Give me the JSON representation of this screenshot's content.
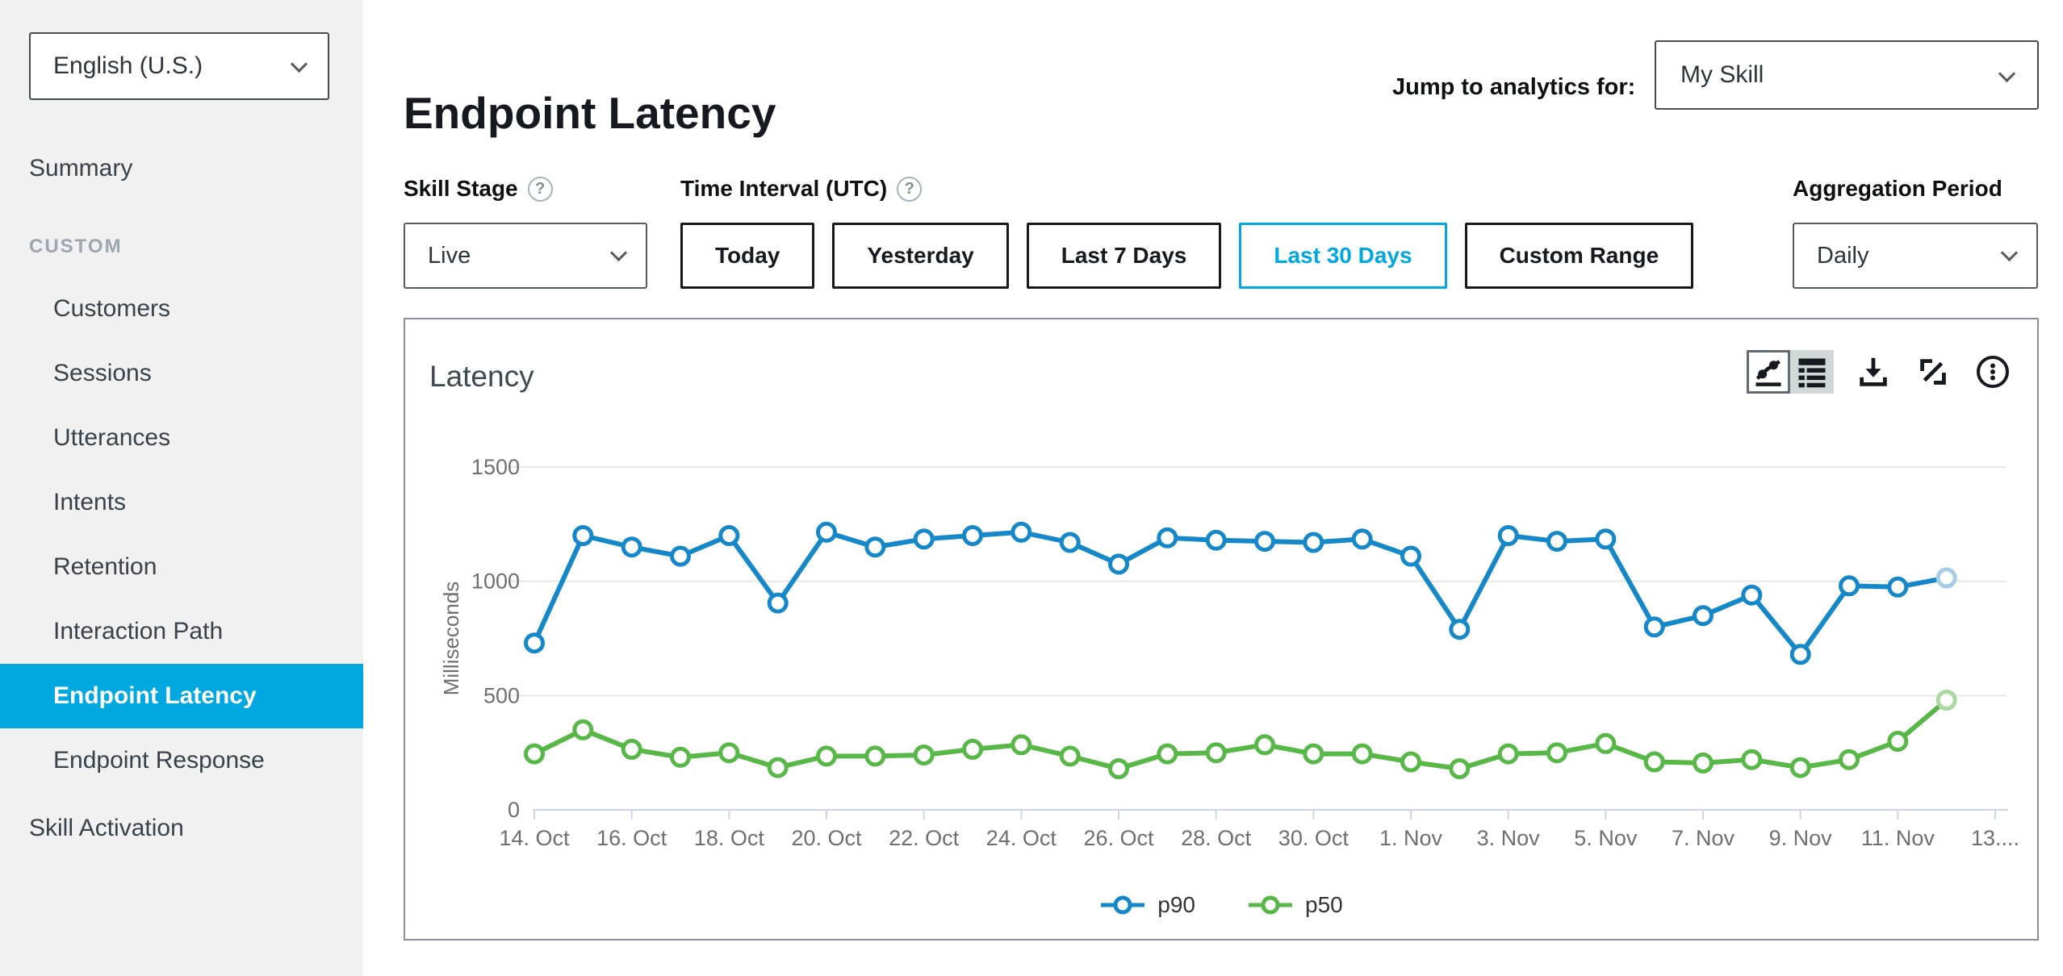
{
  "sidebar": {
    "language_selector": {
      "value": "English (U.S.)"
    },
    "summary_label": "Summary",
    "section_label": "CUSTOM",
    "custom_items": [
      {
        "label": "Customers",
        "selected": false
      },
      {
        "label": "Sessions",
        "selected": false
      },
      {
        "label": "Utterances",
        "selected": false
      },
      {
        "label": "Intents",
        "selected": false
      },
      {
        "label": "Retention",
        "selected": false
      },
      {
        "label": "Interaction Path",
        "selected": false
      },
      {
        "label": "Endpoint Latency",
        "selected": true
      },
      {
        "label": "Endpoint Response",
        "selected": false
      }
    ],
    "skill_activation_label": "Skill Activation"
  },
  "header": {
    "title": "Endpoint Latency",
    "jump_label": "Jump to analytics for:",
    "skill_selector": {
      "value": "My Skill"
    }
  },
  "filters": {
    "skill_stage": {
      "label": "Skill Stage",
      "value": "Live",
      "help_icon": "question-mark-icon"
    },
    "time_interval": {
      "label": "Time Interval (UTC)",
      "help_icon": "question-mark-icon",
      "options": [
        {
          "label": "Today",
          "selected": false
        },
        {
          "label": "Yesterday",
          "selected": false
        },
        {
          "label": "Last 7 Days",
          "selected": false
        },
        {
          "label": "Last 30 Days",
          "selected": true
        },
        {
          "label": "Custom Range",
          "selected": false
        }
      ]
    },
    "aggregation_period": {
      "label": "Aggregation Period",
      "value": "Daily"
    }
  },
  "panel": {
    "title": "Latency",
    "toolbar_icons": [
      {
        "name": "line-chart-view-icon",
        "state": "selected"
      },
      {
        "name": "table-view-icon",
        "state": "normal"
      },
      {
        "name": "download-icon",
        "state": "normal"
      },
      {
        "name": "resize-icon",
        "state": "normal"
      },
      {
        "name": "context-menu-icon",
        "state": "normal"
      }
    ]
  },
  "colors": {
    "accent": "#00a8e1",
    "p90": "#1588c9",
    "p50": "#57b847",
    "grid": "#e8e8e8",
    "axis": "#ccd6eb"
  },
  "chart_data": {
    "type": "line",
    "title": "Latency",
    "xlabel": "",
    "ylabel": "Milliseconds",
    "ylim": [
      0,
      1500
    ],
    "y_ticks": [
      0,
      500,
      1000,
      1500
    ],
    "grid": true,
    "legend_position": "bottom",
    "categories": [
      "14. Oct",
      "15. Oct",
      "16. Oct",
      "17. Oct",
      "18. Oct",
      "19. Oct",
      "20. Oct",
      "21. Oct",
      "22. Oct",
      "23. Oct",
      "24. Oct",
      "25. Oct",
      "26. Oct",
      "27. Oct",
      "28. Oct",
      "29. Oct",
      "30. Oct",
      "31. Oct",
      "1. Nov",
      "2. Nov",
      "3. Nov",
      "4. Nov",
      "5. Nov",
      "6. Nov",
      "7. Nov",
      "8. Nov",
      "9. Nov",
      "10. Nov",
      "11. Nov",
      "12. Nov"
    ],
    "x_tick_labels": [
      "14. Oct",
      "16. Oct",
      "18. Oct",
      "20. Oct",
      "22. Oct",
      "24. Oct",
      "26. Oct",
      "28. Oct",
      "30. Oct",
      "1. Nov",
      "3. Nov",
      "5. Nov",
      "7. Nov",
      "9. Nov",
      "11. Nov",
      "13...."
    ],
    "last_point_faded": true,
    "series": [
      {
        "name": "p90",
        "color": "#1588c9",
        "faded_color": "#a6cde8",
        "values": [
          730,
          1200,
          1150,
          1110,
          1200,
          905,
          1215,
          1150,
          1185,
          1200,
          1215,
          1170,
          1075,
          1190,
          1180,
          1175,
          1170,
          1185,
          1110,
          790,
          1200,
          1175,
          1185,
          800,
          850,
          940,
          680,
          980,
          975,
          1015
        ]
      },
      {
        "name": "p50",
        "color": "#57b847",
        "faded_color": "#a9d8a0",
        "values": [
          245,
          350,
          265,
          230,
          250,
          185,
          235,
          235,
          240,
          265,
          285,
          235,
          180,
          245,
          250,
          285,
          245,
          245,
          210,
          180,
          245,
          250,
          290,
          210,
          205,
          220,
          185,
          220,
          300,
          480
        ]
      }
    ]
  }
}
